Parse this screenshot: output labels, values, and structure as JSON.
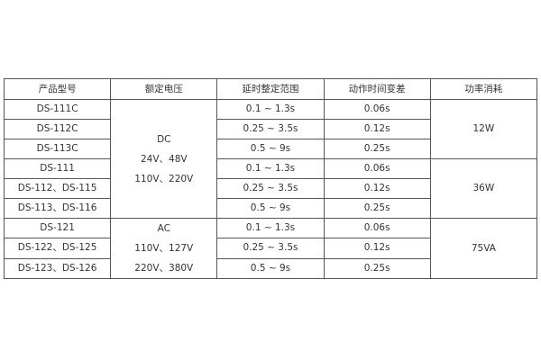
{
  "headers": [
    "产品型号",
    "额定电压",
    "延时整定范围",
    "动作时间变差",
    "功率消耗"
  ],
  "models": [
    "DS-111C",
    "DS-112C",
    "DS-113C",
    "DS-111",
    "DS-112、DS-115",
    "DS-113、DS-116",
    "DS-121",
    "DS-122、DS-125",
    "DS-123、DS-126"
  ],
  "ranges": [
    "0.1 ~ 1.3s",
    "0.25 ~ 3.5s",
    "0.5 ~ 9s",
    "0.1 ~ 1.3s",
    "0.25 ~ 3.5s",
    "0.5 ~ 9s",
    "0.1 ~ 1.3s",
    "0.25 ~ 3.5s",
    "0.5 ~ 9s"
  ],
  "variations": [
    "0.06s",
    "0.12s",
    "0.25s",
    "0.06s",
    "0.12s",
    "0.25s",
    "0.06s",
    "0.12s",
    "0.25s"
  ],
  "voltage_groups": [
    {
      "lines": [
        "DC",
        "24V、48V",
        "110V、220V"
      ]
    },
    {
      "lines": [
        "AC",
        "110V、127V",
        "220V、380V"
      ]
    }
  ],
  "power_groups": [
    "12W",
    "36W",
    "75VA"
  ]
}
